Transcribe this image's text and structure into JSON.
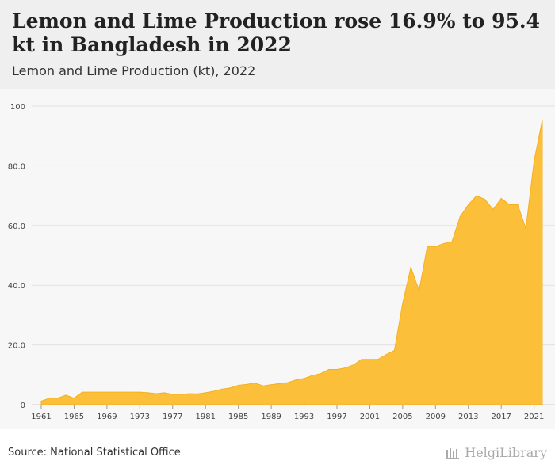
{
  "header": {
    "title": "Lemon and Lime Production rose 16.9% to 95.4 kt in Bangladesh in 2022",
    "subtitle": "Lemon and Lime Production (kt), 2022"
  },
  "footer": {
    "source": "Source: National Statistical Office",
    "brand": "HelgiLibrary"
  },
  "colors": {
    "area_fill": "#fbbf3a",
    "area_stroke": "#f5b021",
    "grid": "#e2e2e2"
  },
  "chart_data": {
    "type": "area",
    "title": "Lemon and Lime Production rose 16.9% to 95.4 kt in Bangladesh in 2022",
    "subtitle": "Lemon and Lime Production (kt), 2022",
    "xlabel": "",
    "ylabel": "",
    "ylim": [
      0,
      100
    ],
    "y_ticks": [
      0,
      20,
      40,
      60,
      80,
      100
    ],
    "y_tick_labels": [
      "0",
      "20.0",
      "40.0",
      "60.0",
      "80.0",
      "100"
    ],
    "x_ticks": [
      1961,
      1965,
      1969,
      1973,
      1977,
      1981,
      1985,
      1989,
      1993,
      1997,
      2001,
      2005,
      2009,
      2013,
      2017,
      2021
    ],
    "grid": true,
    "legend": "none",
    "x": [
      1961,
      1962,
      1963,
      1964,
      1965,
      1966,
      1967,
      1968,
      1969,
      1970,
      1971,
      1972,
      1973,
      1974,
      1975,
      1976,
      1977,
      1978,
      1979,
      1980,
      1981,
      1982,
      1983,
      1984,
      1985,
      1986,
      1987,
      1988,
      1989,
      1990,
      1991,
      1992,
      1993,
      1994,
      1995,
      1996,
      1997,
      1998,
      1999,
      2000,
      2001,
      2002,
      2003,
      2004,
      2005,
      2006,
      2007,
      2008,
      2009,
      2010,
      2011,
      2012,
      2013,
      2014,
      2015,
      2016,
      2017,
      2018,
      2019,
      2020,
      2021,
      2022
    ],
    "series": [
      {
        "values": [
          1.2,
          2.2,
          2.2,
          3.2,
          2.2,
          4.2,
          4.2,
          4.2,
          4.2,
          4.2,
          4.2,
          4.2,
          4.2,
          4.0,
          3.7,
          4.0,
          3.5,
          3.4,
          3.7,
          3.6,
          4.0,
          4.5,
          5.2,
          5.6,
          6.5,
          6.8,
          7.3,
          6.3,
          6.7,
          7.1,
          7.4,
          8.3,
          8.8,
          9.8,
          10.4,
          11.8,
          11.8,
          12.3,
          13.3,
          15.2,
          15.2,
          15.2,
          16.8,
          18.2,
          34.0,
          46.0,
          38.2,
          53.0,
          53.0,
          54.0,
          54.6,
          63.0,
          67.0,
          70.0,
          68.8,
          65.4,
          69.1,
          67.0,
          67.0,
          59.0,
          81.6,
          95.4
        ]
      }
    ]
  }
}
